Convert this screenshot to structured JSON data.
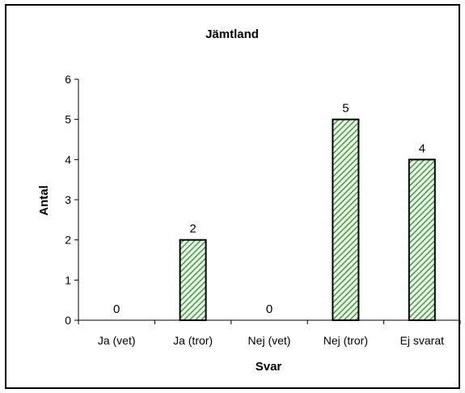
{
  "chart_data": {
    "type": "bar",
    "title": "Jämtland",
    "xlabel": "Svar",
    "ylabel": "Antal",
    "categories": [
      "Ja (vet)",
      "Ja (tror)",
      "Nej (vet)",
      "Nej (tror)",
      "Ej svarat"
    ],
    "values": [
      0,
      2,
      0,
      5,
      4
    ],
    "data_labels": [
      "0",
      "2",
      "0",
      "5",
      "4"
    ],
    "ylim": [
      0,
      6
    ],
    "yticks": [
      0,
      1,
      2,
      3,
      4,
      5,
      6
    ],
    "grid": false,
    "legend": "none",
    "bar_fill": "green diagonal hatch",
    "colors": {
      "bar_stripe": "#2e8b3a",
      "bar_bg": "#e8f5e0",
      "axis": "#000000"
    }
  }
}
